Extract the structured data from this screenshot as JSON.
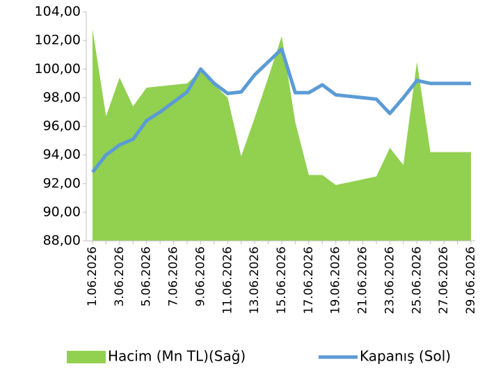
{
  "chart_data": {
    "type": "line-area",
    "categories": [
      "1.06.2026",
      null,
      "3.06.2026",
      null,
      "5.06.2026",
      null,
      "7.06.2026",
      null,
      "9.06.2026",
      null,
      "11.06.2026",
      null,
      "13.06.2026",
      null,
      "15.06.2026",
      null,
      "17.06.2026",
      null,
      "19.06.2026",
      null,
      "21.06.2026",
      null,
      "23.06.2026",
      null,
      "25.06.2026",
      null,
      "27.06.2026",
      null,
      "29.06.2026"
    ],
    "series": [
      {
        "name": "Hacim (Mn TL)(Sağ)",
        "kind": "area",
        "color": "#92d050",
        "values": [
          102.8,
          96.7,
          99.4,
          97.4,
          98.7,
          98.8,
          98.9,
          99.0,
          99.9,
          98.9,
          98.0,
          93.9,
          96.6,
          99.4,
          102.3,
          96.3,
          92.6,
          92.6,
          91.9,
          92.1,
          92.3,
          92.5,
          94.5,
          93.3,
          100.5,
          94.2,
          94.2,
          94.2,
          94.2
        ]
      },
      {
        "name": "Kapanış (Sol)",
        "kind": "line",
        "color": "#5b9bd5",
        "values": [
          92.8,
          94.0,
          94.7,
          95.1,
          96.4,
          97.0,
          97.7,
          98.4,
          100.0,
          99.0,
          98.3,
          98.4,
          99.6,
          100.5,
          101.4,
          98.35,
          98.35,
          98.9,
          98.2,
          98.1,
          98.0,
          97.9,
          96.9,
          98.0,
          99.2,
          99.0,
          99.0,
          99.0,
          99.0
        ]
      }
    ],
    "ylim": [
      88,
      104
    ],
    "yticks": [
      {
        "value": 88,
        "label": "88,00"
      },
      {
        "value": 90,
        "label": "90,00"
      },
      {
        "value": 92,
        "label": "92,00"
      },
      {
        "value": 94,
        "label": "94,00"
      },
      {
        "value": 96,
        "label": "96,00"
      },
      {
        "value": 98,
        "label": "98,00"
      },
      {
        "value": 100,
        "label": "100,00"
      },
      {
        "value": 102,
        "label": "102,00"
      },
      {
        "value": 104,
        "label": "104,00"
      }
    ],
    "legend": "bottom"
  }
}
